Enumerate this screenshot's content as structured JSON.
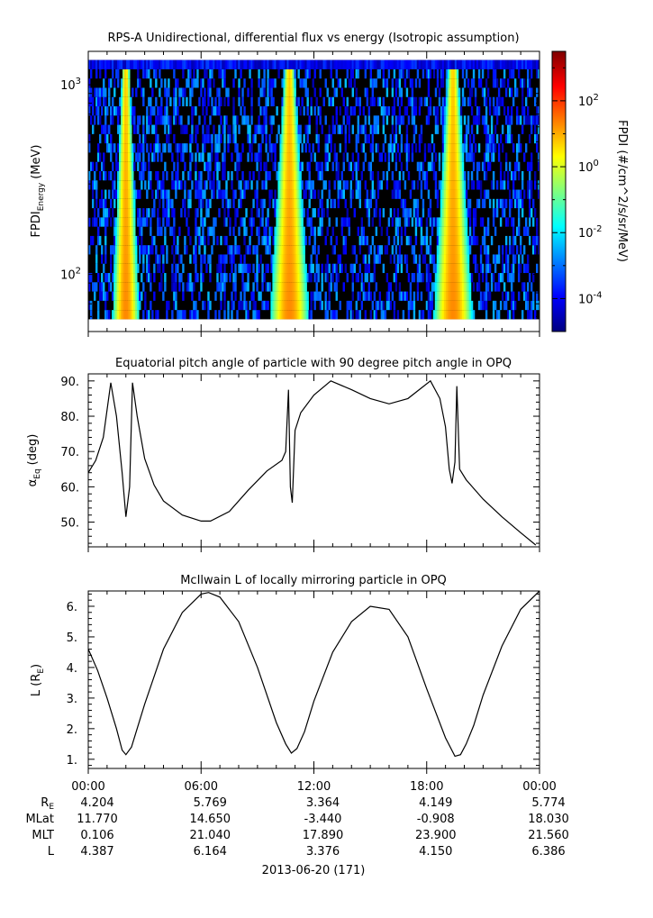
{
  "footer": {
    "row_labels": [
      "R_E",
      "MLat",
      "MLT",
      "L"
    ],
    "times": [
      "00:00",
      "06:00",
      "12:00",
      "18:00",
      "00:00"
    ],
    "values": [
      [
        "4.204",
        "5.769",
        "3.364",
        "4.149",
        "5.774"
      ],
      [
        "11.770",
        "14.650",
        "-3.440",
        "-0.908",
        "18.030"
      ],
      [
        "0.106",
        "21.040",
        "17.890",
        "23.900",
        "21.560"
      ],
      [
        "4.387",
        "6.164",
        "3.376",
        "4.150",
        "6.386"
      ]
    ],
    "date_label": "2013-06-20 (171)"
  },
  "chart_data": [
    {
      "type": "heatmap",
      "title": "RPS-A Unidirectional, differential flux vs energy (Isotropic assumption)",
      "ylabel": "FPDI",
      "ylabel_sub": "Energy",
      "ylabel_unit": "(MeV)",
      "yscale": "log",
      "ylim": [
        50,
        1500
      ],
      "energy_range_mev": [
        58,
        1350
      ],
      "y_ticks": [
        {
          "base": "10",
          "exp": "2",
          "value": 100
        },
        {
          "base": "10",
          "exp": "3",
          "value": 1000
        }
      ],
      "x_hours": [
        0,
        24
      ],
      "flux_bands_hours": [
        {
          "center": 2.0,
          "width_low": 0.55,
          "width_high": 0.15
        },
        {
          "center": 10.7,
          "width_low": 0.8,
          "width_high": 0.2
        },
        {
          "center": 19.4,
          "width_low": 0.8,
          "width_high": 0.2
        }
      ],
      "colorbar": {
        "label": "FPDI (#/cm^2/s/sr/MeV)",
        "scale": "log",
        "range_log10": [
          -5,
          3.5
        ],
        "ticks": [
          {
            "base": "10",
            "exp": "-4",
            "log": -4
          },
          {
            "base": "10",
            "exp": "-2",
            "log": -2
          },
          {
            "base": "10",
            "exp": "0",
            "log": 0
          },
          {
            "base": "10",
            "exp": "2",
            "log": 2
          }
        ],
        "colors": [
          "#00007f",
          "#0000ff",
          "#007fff",
          "#00ffff",
          "#7fff7f",
          "#ffff00",
          "#ff7f00",
          "#ff0000",
          "#7f0000"
        ]
      }
    },
    {
      "type": "line",
      "title": "Equatorial pitch angle of particle with 90 degree pitch angle in OPQ",
      "ylabel_greek": "α",
      "ylabel_sub": "Eq",
      "ylabel_unit": "(deg)",
      "ylim": [
        43,
        92
      ],
      "y_ticks": [
        "50.",
        "60.",
        "70.",
        "80.",
        "90."
      ],
      "x_hours": [
        0,
        0.4,
        0.8,
        1.2,
        1.5,
        1.8,
        2.0,
        2.2,
        2.35,
        2.6,
        3.0,
        3.5,
        4.0,
        5.0,
        6.0,
        6.5,
        7.5,
        8.5,
        9.5,
        10.3,
        10.5,
        10.65,
        10.75,
        10.85,
        11.0,
        11.3,
        12.0,
        12.9,
        14.0,
        15.0,
        16.0,
        17.0,
        18.2,
        18.7,
        19.0,
        19.2,
        19.35,
        19.5,
        19.6,
        19.75,
        20.1,
        21.0,
        22.0,
        23.0,
        23.8
      ],
      "values": [
        64,
        67.5,
        74,
        89.5,
        80,
        64,
        51.5,
        60,
        89.5,
        80,
        68,
        60.5,
        56,
        52,
        50.3,
        50.3,
        53,
        59,
        64.5,
        67.5,
        70,
        87.5,
        60,
        55.5,
        76,
        81,
        86,
        90,
        87.5,
        85,
        83.5,
        85,
        90,
        85,
        77,
        65,
        61,
        67,
        88.5,
        65,
        62,
        56.5,
        51.5,
        47,
        43.5
      ]
    },
    {
      "type": "line",
      "title": "McIlwain L of locally mirroring particle in OPQ",
      "ylabel": "L (R",
      "ylabel_sub": "E",
      "ylabel_suffix": ")",
      "ylim": [
        0.7,
        6.5
      ],
      "y_ticks": [
        "1.",
        "2.",
        "3.",
        "4.",
        "5.",
        "6."
      ],
      "x_hours": [
        0,
        0.5,
        1.0,
        1.5,
        1.8,
        2.0,
        2.3,
        3.0,
        4.0,
        5.0,
        6.0,
        6.4,
        7.0,
        8.0,
        9.0,
        10.0,
        10.5,
        10.8,
        11.1,
        11.5,
        12.0,
        13.0,
        14.0,
        15.0,
        16.0,
        17.0,
        18.0,
        19.0,
        19.5,
        19.8,
        20.1,
        20.5,
        21.0,
        22.0,
        23.0,
        24.0
      ],
      "values": [
        4.6,
        3.9,
        3.0,
        2.0,
        1.3,
        1.15,
        1.4,
        2.8,
        4.6,
        5.8,
        6.4,
        6.45,
        6.3,
        5.5,
        4.0,
        2.2,
        1.5,
        1.2,
        1.35,
        1.9,
        2.9,
        4.5,
        5.5,
        6.0,
        5.9,
        5.0,
        3.3,
        1.7,
        1.1,
        1.15,
        1.5,
        2.1,
        3.1,
        4.7,
        5.9,
        6.5
      ]
    }
  ]
}
